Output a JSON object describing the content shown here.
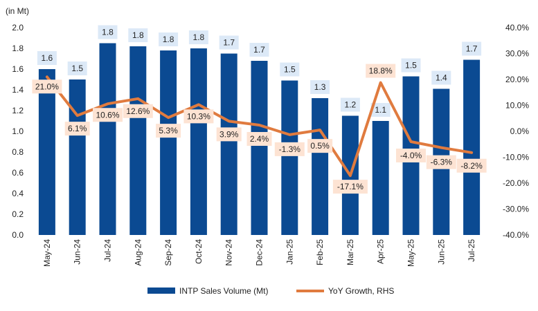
{
  "chart_data": {
    "type": "bar",
    "unit_label": "(in Mt)",
    "categories": [
      "May-24",
      "Jun-24",
      "Jul-24",
      "Aug-24",
      "Sep-24",
      "Oct-24",
      "Nov-24",
      "Dec-24",
      "Jan-25",
      "Feb-25",
      "Mar-25",
      "Apr-25",
      "May-25",
      "Jun-25",
      "Jul-25"
    ],
    "series": [
      {
        "name": "INTP Sales Volume (Mt)",
        "type": "bar",
        "axis": "left",
        "values": [
          1.6,
          1.5,
          1.85,
          1.82,
          1.78,
          1.8,
          1.75,
          1.68,
          1.49,
          1.32,
          1.15,
          1.1,
          1.53,
          1.41,
          1.69
        ],
        "labels": [
          "1.6",
          "1.5",
          "1.8",
          "1.8",
          "1.8",
          "1.8",
          "1.7",
          "1.7",
          "1.5",
          "1.3",
          "1.2",
          "1.1",
          "1.5",
          "1.4",
          "1.7"
        ],
        "color": "#0b4a92"
      },
      {
        "name": "YoY Growth, RHS",
        "type": "line",
        "axis": "right",
        "values": [
          21.0,
          6.1,
          10.6,
          12.6,
          5.3,
          10.3,
          3.9,
          2.4,
          -1.3,
          0.5,
          -17.1,
          18.8,
          -4.0,
          -6.3,
          -8.2
        ],
        "labels": [
          "21.0%",
          "6.1%",
          "10.6%",
          "12.6%",
          "5.3%",
          "10.3%",
          "3.9%",
          "2.4%",
          "-1.3%",
          "0.5%",
          "-17.1%",
          "18.8%",
          "-4.0%",
          "-6.3%",
          "-8.2%"
        ],
        "color": "#e07b3f"
      }
    ],
    "y_left": {
      "range": [
        0,
        2.0
      ],
      "ticks": [
        "0.0",
        "0.2",
        "0.4",
        "0.6",
        "0.8",
        "1.0",
        "1.2",
        "1.4",
        "1.6",
        "1.8",
        "2.0"
      ]
    },
    "y_right": {
      "range": [
        -40,
        40
      ],
      "ticks": [
        "-40.0%",
        "-30.0%",
        "-20.0%",
        "-10.0%",
        "0.0%",
        "10.0%",
        "20.0%",
        "30.0%",
        "40.0%"
      ]
    },
    "grid": false,
    "legend_position": "bottom",
    "colors": {
      "bar": "#0b4a92",
      "line": "#e07b3f",
      "bar_label_bg": "#dce9f7",
      "line_label_bg": "#fde3d3"
    }
  }
}
